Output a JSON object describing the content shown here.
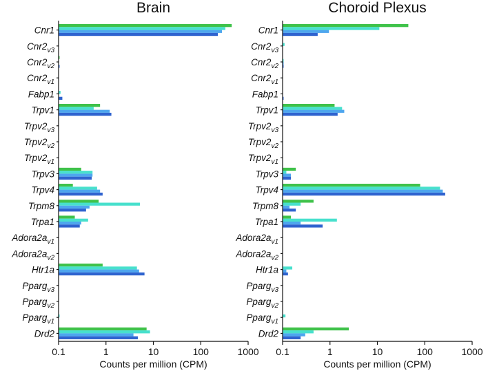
{
  "chart_data": [
    {
      "type": "bar",
      "orientation": "horizontal",
      "title": "Brain",
      "xlabel": "Counts per million (CPM)",
      "xscale": "log",
      "xlim": [
        0.1,
        1000
      ],
      "xticks": [
        "0.1",
        "1",
        "10",
        "100",
        "1000"
      ],
      "categories": [
        {
          "base": "Cnr1",
          "sub": ""
        },
        {
          "base": "Cnr2",
          "sub": "v3"
        },
        {
          "base": "Cnr2",
          "sub": "v2"
        },
        {
          "base": "Cnr2",
          "sub": "v1"
        },
        {
          "base": "Fabp1",
          "sub": ""
        },
        {
          "base": "Trpv1",
          "sub": ""
        },
        {
          "base": "Trpv2",
          "sub": "v3"
        },
        {
          "base": "Trpv2",
          "sub": "v2"
        },
        {
          "base": "Trpv2",
          "sub": "v1"
        },
        {
          "base": "Trpv3",
          "sub": ""
        },
        {
          "base": "Trpv4",
          "sub": ""
        },
        {
          "base": "Trpm8",
          "sub": ""
        },
        {
          "base": "Trpa1",
          "sub": ""
        },
        {
          "base": "Adora2a",
          "sub": "v1"
        },
        {
          "base": "Adora2a",
          "sub": "v2"
        },
        {
          "base": "Htr1a",
          "sub": ""
        },
        {
          "base": "Pparg",
          "sub": "v3"
        },
        {
          "base": "Pparg",
          "sub": "v2"
        },
        {
          "base": "Pparg",
          "sub": "v1"
        },
        {
          "base": "Drd2",
          "sub": ""
        }
      ],
      "series": [
        {
          "color": "#3fc24a",
          "values": [
            450,
            0,
            0.105,
            0,
            0,
            0.75,
            0,
            0,
            0,
            0.3,
            0.2,
            0.7,
            0.22,
            0,
            0,
            0.85,
            0,
            0,
            0,
            7.2
          ]
        },
        {
          "color": "#48e0cd",
          "values": [
            330,
            0,
            0,
            0,
            0.11,
            0.55,
            0,
            0,
            0,
            0.52,
            0.65,
            5.2,
            0.42,
            0,
            0,
            4.5,
            0,
            0,
            0.105,
            8.5
          ]
        },
        {
          "color": "#4ea6ee",
          "values": [
            280,
            0,
            0,
            0,
            0,
            1.2,
            0,
            0,
            0,
            0.52,
            0.75,
            0.45,
            0.3,
            0,
            0,
            5.0,
            0,
            0,
            0,
            3.8
          ]
        },
        {
          "color": "#2f63cf",
          "values": [
            230,
            0,
            0.105,
            0,
            0.12,
            1.3,
            0,
            0,
            0,
            0.5,
            0.85,
            0.38,
            0.28,
            0,
            0,
            6.5,
            0,
            0,
            0,
            4.7
          ]
        }
      ]
    },
    {
      "type": "bar",
      "orientation": "horizontal",
      "title": "Choroid Plexus",
      "xlabel": "Counts per million (CPM)",
      "xscale": "log",
      "xlim": [
        0.1,
        1000
      ],
      "xticks": [
        "0.1",
        "1",
        "10",
        "100",
        "1000"
      ],
      "categories": [
        {
          "base": "Cnr1",
          "sub": ""
        },
        {
          "base": "Cnr2",
          "sub": "v3"
        },
        {
          "base": "Cnr2",
          "sub": "v2"
        },
        {
          "base": "Cnr2",
          "sub": "v1"
        },
        {
          "base": "Fabp1",
          "sub": ""
        },
        {
          "base": "Trpv1",
          "sub": ""
        },
        {
          "base": "Trpv2",
          "sub": "v3"
        },
        {
          "base": "Trpv2",
          "sub": "v2"
        },
        {
          "base": "Trpv2",
          "sub": "v1"
        },
        {
          "base": "Trpv3",
          "sub": ""
        },
        {
          "base": "Trpv4",
          "sub": ""
        },
        {
          "base": "Trpm8",
          "sub": ""
        },
        {
          "base": "Trpa1",
          "sub": ""
        },
        {
          "base": "Adora2a",
          "sub": "v1"
        },
        {
          "base": "Adora2a",
          "sub": "v2"
        },
        {
          "base": "Htr1a",
          "sub": ""
        },
        {
          "base": "Pparg",
          "sub": "v3"
        },
        {
          "base": "Pparg",
          "sub": "v2"
        },
        {
          "base": "Pparg",
          "sub": "v1"
        },
        {
          "base": "Drd2",
          "sub": ""
        }
      ],
      "series": [
        {
          "color": "#3fc24a",
          "values": [
            45,
            0,
            0,
            0,
            0,
            1.25,
            0,
            0,
            0,
            0.19,
            80,
            0.45,
            0.15,
            0,
            0,
            0,
            0,
            0,
            0,
            2.5
          ]
        },
        {
          "color": "#48e0cd",
          "values": [
            11,
            0.11,
            0.105,
            0,
            0,
            1.8,
            0,
            0,
            0,
            0.12,
            210,
            0.24,
            1.4,
            0,
            0,
            0.16,
            0,
            0,
            0.115,
            0.45
          ]
        },
        {
          "color": "#4ea6ee",
          "values": [
            0.95,
            0,
            0.105,
            0,
            0,
            2.0,
            0,
            0,
            0,
            0.15,
            240,
            0.14,
            0.24,
            0,
            0,
            0.12,
            0,
            0,
            0,
            0.3
          ]
        },
        {
          "color": "#2f63cf",
          "values": [
            0.55,
            0,
            0.105,
            0,
            0.105,
            1.45,
            0,
            0,
            0,
            0.15,
            270,
            0.19,
            0.7,
            0,
            0,
            0.13,
            0,
            0,
            0,
            0.24
          ]
        }
      ]
    }
  ]
}
